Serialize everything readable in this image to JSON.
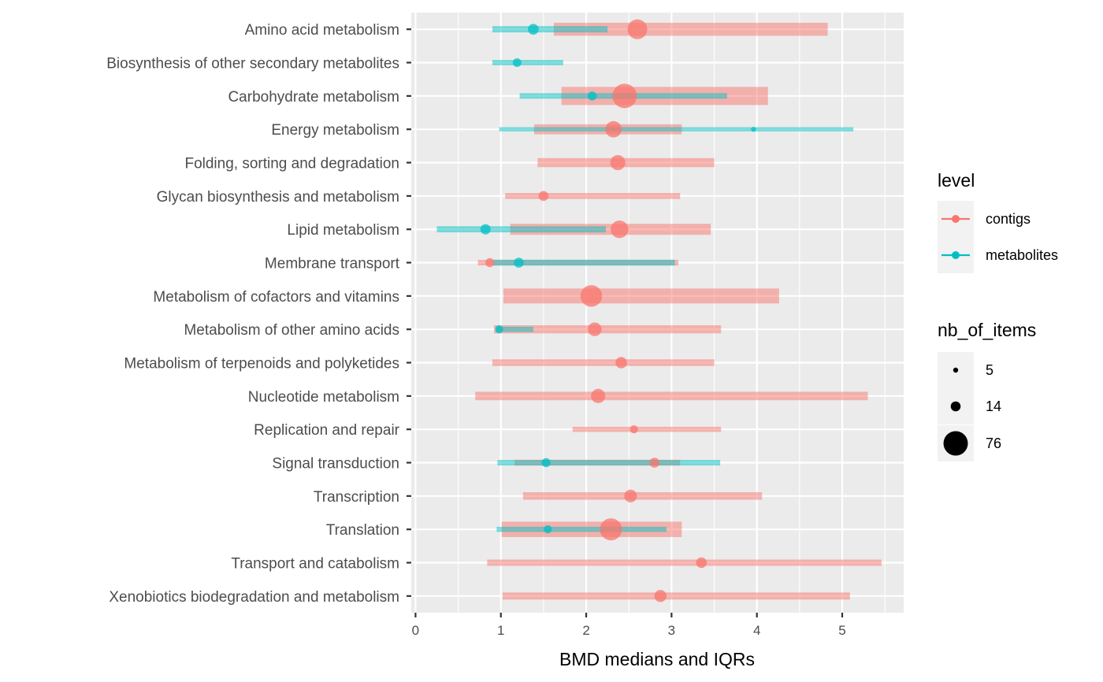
{
  "chart_data": {
    "type": "range-dot",
    "xlabel": "BMD medians and IQRs",
    "ylabel": "",
    "xlim": [
      -0.05,
      5.72
    ],
    "x_ticks": [
      "0",
      "1",
      "2",
      "3",
      "4",
      "5"
    ],
    "x_tick_values": [
      0,
      1,
      2,
      3,
      4,
      5
    ],
    "categories": [
      "Amino acid metabolism",
      "Biosynthesis of other secondary metabolites",
      "Carbohydrate metabolism",
      "Energy metabolism",
      "Folding, sorting and degradation",
      "Glycan biosynthesis and metabolism",
      "Lipid metabolism",
      "Membrane transport",
      "Metabolism of cofactors and vitamins",
      "Metabolism of other amino acids",
      "Metabolism of terpenoids and polyketides",
      "Nucleotide metabolism",
      "Replication and repair",
      "Signal transduction",
      "Transcription",
      "Translation",
      "Transport and catabolism",
      "Xenobiotics biodegradation and metabolism"
    ],
    "series": [
      {
        "name": "contigs",
        "color": "#F8766D",
        "points": [
          {
            "category": "Amino acid metabolism",
            "q1": 1.62,
            "median": 2.6,
            "q3": 4.83,
            "nb_of_items": 50
          },
          {
            "category": "Carbohydrate metabolism",
            "q1": 1.71,
            "median": 2.45,
            "q3": 4.13,
            "nb_of_items": 76
          },
          {
            "category": "Energy metabolism",
            "q1": 1.39,
            "median": 2.32,
            "q3": 3.12,
            "nb_of_items": 35
          },
          {
            "category": "Folding, sorting and degradation",
            "q1": 1.43,
            "median": 2.37,
            "q3": 3.5,
            "nb_of_items": 30
          },
          {
            "category": "Glycan biosynthesis and metabolism",
            "q1": 1.05,
            "median": 1.5,
            "q3": 3.1,
            "nb_of_items": 14
          },
          {
            "category": "Lipid metabolism",
            "q1": 1.11,
            "median": 2.39,
            "q3": 3.46,
            "nb_of_items": 40
          },
          {
            "category": "Membrane transport",
            "q1": 0.73,
            "median": 0.87,
            "q3": 3.08,
            "nb_of_items": 12
          },
          {
            "category": "Metabolism of cofactors and vitamins",
            "q1": 1.03,
            "median": 2.06,
            "q3": 4.26,
            "nb_of_items": 60
          },
          {
            "category": "Metabolism of other amino acids",
            "q1": 0.92,
            "median": 2.1,
            "q3": 3.58,
            "nb_of_items": 25
          },
          {
            "category": "Metabolism of terpenoids and polyketides",
            "q1": 0.9,
            "median": 2.41,
            "q3": 3.5,
            "nb_of_items": 18
          },
          {
            "category": "Nucleotide metabolism",
            "q1": 0.7,
            "median": 2.14,
            "q3": 5.3,
            "nb_of_items": 27
          },
          {
            "category": "Replication and repair",
            "q1": 1.84,
            "median": 2.56,
            "q3": 3.58,
            "nb_of_items": 10
          },
          {
            "category": "Signal transduction",
            "q1": 1.16,
            "median": 2.8,
            "q3": 3.1,
            "nb_of_items": 14
          },
          {
            "category": "Transcription",
            "q1": 1.26,
            "median": 2.52,
            "q3": 4.06,
            "nb_of_items": 22
          },
          {
            "category": "Translation",
            "q1": 1.01,
            "median": 2.29,
            "q3": 3.12,
            "nb_of_items": 62
          },
          {
            "category": "Transport and catabolism",
            "q1": 0.84,
            "median": 3.35,
            "q3": 5.46,
            "nb_of_items": 16
          },
          {
            "category": "Xenobiotics biodegradation and metabolism",
            "q1": 1.02,
            "median": 2.87,
            "q3": 5.09,
            "nb_of_items": 20
          }
        ]
      },
      {
        "name": "metabolites",
        "color": "#00BFC4",
        "points": [
          {
            "category": "Amino acid metabolism",
            "q1": 0.9,
            "median": 1.38,
            "q3": 2.25,
            "nb_of_items": 16
          },
          {
            "category": "Biosynthesis of other secondary metabolites",
            "q1": 0.9,
            "median": 1.19,
            "q3": 1.73,
            "nb_of_items": 11
          },
          {
            "category": "Carbohydrate metabolism",
            "q1": 1.22,
            "median": 2.07,
            "q3": 3.65,
            "nb_of_items": 12
          },
          {
            "category": "Energy metabolism",
            "q1": 0.98,
            "median": 3.96,
            "q3": 5.13,
            "nb_of_items": 5
          },
          {
            "category": "Lipid metabolism",
            "q1": 0.25,
            "median": 0.82,
            "q3": 2.23,
            "nb_of_items": 15
          },
          {
            "category": "Membrane transport",
            "q1": 0.91,
            "median": 1.21,
            "q3": 3.04,
            "nb_of_items": 14
          },
          {
            "category": "Metabolism of other amino acids",
            "q1": 0.95,
            "median": 0.98,
            "q3": 1.38,
            "nb_of_items": 10
          },
          {
            "category": "Signal transduction",
            "q1": 0.96,
            "median": 1.53,
            "q3": 3.57,
            "nb_of_items": 12
          },
          {
            "category": "Translation",
            "q1": 0.95,
            "median": 1.55,
            "q3": 2.94,
            "nb_of_items": 10
          }
        ]
      }
    ],
    "legend": {
      "placement": "right",
      "level_title": "level",
      "level_entries": [
        "contigs",
        "metabolites"
      ],
      "size_title": "nb_of_items",
      "size_entries": [
        "5",
        "14",
        "76"
      ],
      "size_values": [
        5,
        14,
        76
      ]
    },
    "grid": true
  }
}
